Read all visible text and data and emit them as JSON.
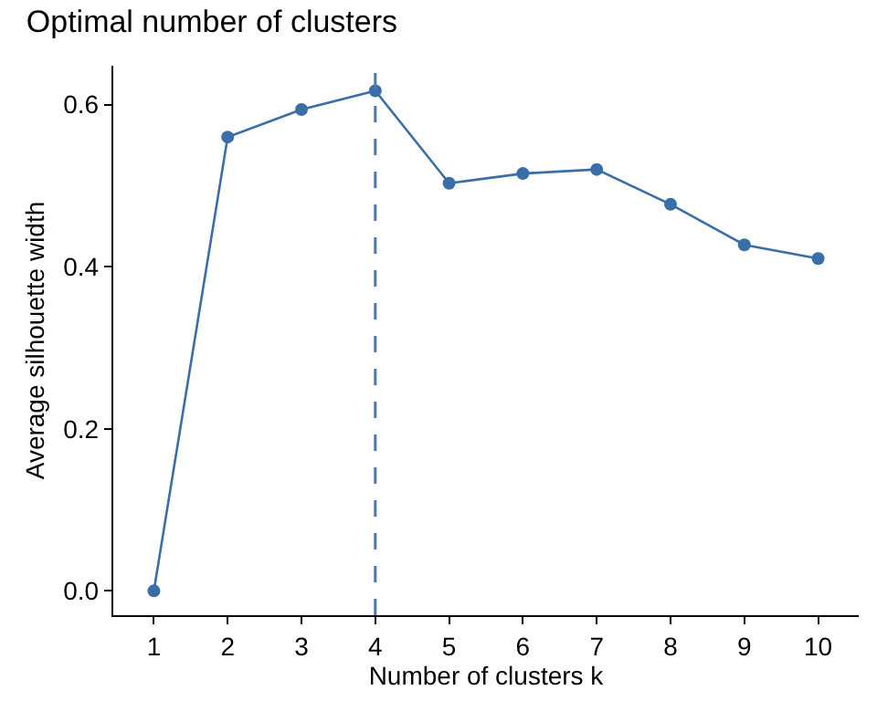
{
  "chart_data": {
    "type": "line",
    "title": "Optimal number of clusters",
    "xlabel": "Number of clusters k",
    "ylabel": "Average silhouette width",
    "x": [
      1,
      2,
      3,
      4,
      5,
      6,
      7,
      8,
      9,
      10
    ],
    "series": [
      {
        "color": "#3a6ea9",
        "values": [
          0.0,
          0.56,
          0.594,
          0.617,
          0.503,
          0.515,
          0.52,
          0.477,
          0.427,
          0.41
        ]
      }
    ],
    "xlim": [
      0.45,
      10.55
    ],
    "xticks": [
      1,
      2,
      3,
      4,
      5,
      6,
      7,
      8,
      9,
      10
    ],
    "ylim": [
      -0.03,
      0.648
    ],
    "yticks": [
      {
        "value": 0,
        "label": "0.0"
      },
      {
        "value": 0.2,
        "label": "0.2"
      },
      {
        "value": 0.4,
        "label": "0.4"
      },
      {
        "value": 0.6,
        "label": "0.6"
      }
    ],
    "ref_lines": [
      {
        "axis": "x",
        "value": 4,
        "color": "#4a7ab0",
        "line_style": "dashed"
      }
    ],
    "marker": "circle",
    "line_style": "solid",
    "grid": false,
    "legend": false
  }
}
